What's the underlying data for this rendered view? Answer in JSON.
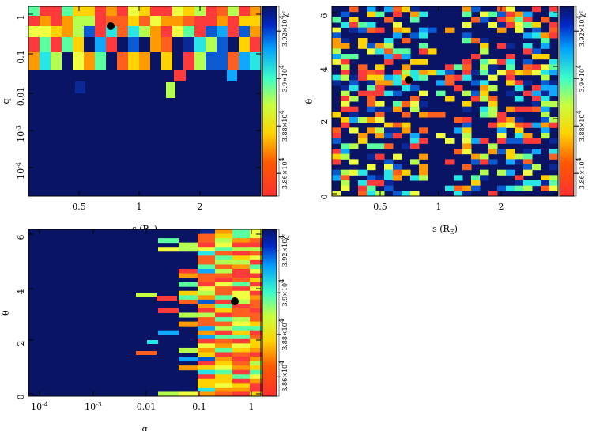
{
  "chart_data": [
    {
      "type": "heatmap",
      "panel": "top-left",
      "xlabel": "s (R_E)",
      "ylabel": "q",
      "x_scale": "log",
      "y_scale": "log",
      "x_ticks": [
        "0.5",
        "1",
        "2"
      ],
      "y_ticks": [
        "1",
        "0.1",
        "0.01",
        "10^-3",
        "10^-4"
      ],
      "colorbar_label": "χ²",
      "colorbar_ticks": [
        "3.86×10^4",
        "3.88×10^4",
        "3.9×10^4",
        "3.92×10^4"
      ],
      "best_fit": {
        "s": 0.75,
        "q": 0.45
      }
    },
    {
      "type": "heatmap",
      "panel": "top-right",
      "xlabel": "s (R_E)",
      "ylabel": "θ",
      "x_scale": "log",
      "y_scale": "linear",
      "x_ticks": [
        "0.5",
        "1",
        "2"
      ],
      "y_ticks": [
        "0",
        "2",
        "4",
        "6"
      ],
      "colorbar_label": "χ²",
      "colorbar_ticks": [
        "3.86×10^4",
        "3.88×10^4",
        "3.9×10^4",
        "3.92×10^4"
      ],
      "best_fit": {
        "s": 0.75,
        "theta": 3.45
      }
    },
    {
      "type": "heatmap",
      "panel": "bottom-left",
      "xlabel": "q",
      "ylabel": "θ",
      "x_scale": "log",
      "y_scale": "linear",
      "x_ticks": [
        "10^-4",
        "10^-3",
        "0.01",
        "0.1",
        "1"
      ],
      "y_ticks": [
        "0",
        "2",
        "4",
        "6"
      ],
      "colorbar_label": "χ²",
      "colorbar_ticks": [
        "3.86×10^4",
        "3.88×10^4",
        "3.9×10^4",
        "3.92×10^4"
      ],
      "best_fit": {
        "q": 0.45,
        "theta": 3.5
      }
    }
  ]
}
